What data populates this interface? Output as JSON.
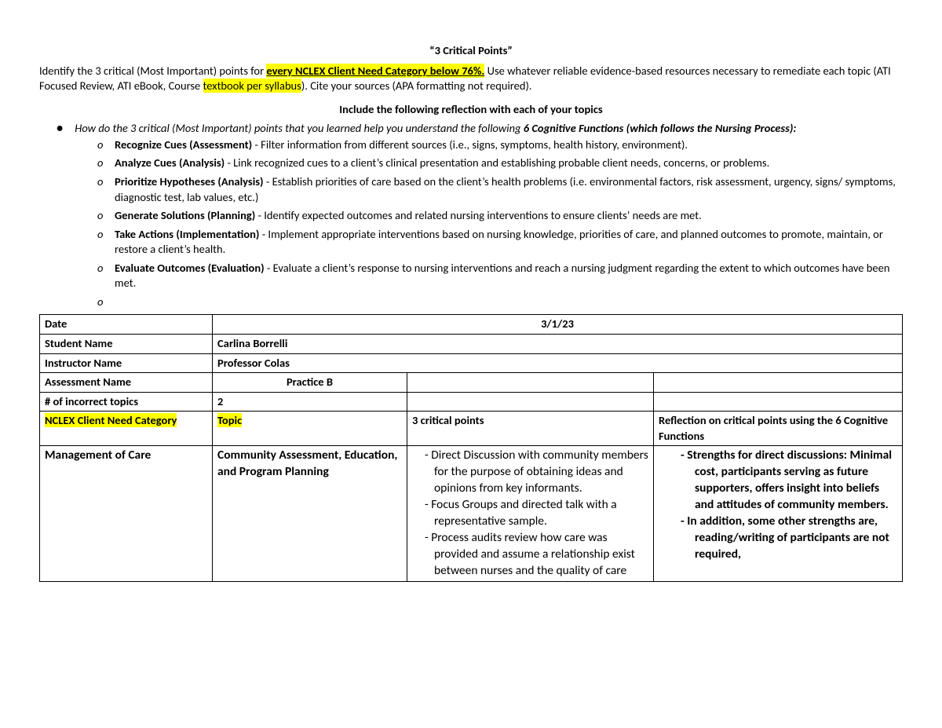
{
  "title": "“3 Critical Points”",
  "intro": {
    "pre": "Identify the 3 critical (Most Important) points for ",
    "hl1": "every NCLEX Client Need Category below 76%.",
    "mid": " Use whatever reliable evidence-based resources necessary to remediate each topic (ATI Focused Review, ATI eBook, Course ",
    "hl2": "textbook per syllabus",
    "post": "). Cite your sources (APA formatting not required)."
  },
  "subhead": "Include the following reflection with each of your topics",
  "top_bullet": {
    "pre": "How do the 3 critical (Most Important) points that you learned help you understand the following ",
    "bold": "6 Cognitive Functions (which follows the Nursing Process):"
  },
  "fns": [
    {
      "lead": "Recognize Cues (Assessment)",
      "rest": " - Filter information from different sources (i.e., signs, symptoms, health history, environment)."
    },
    {
      "lead": "Analyze Cues (Analysis)",
      "rest": " - Link recognized cues to a client’s clinical presentation and establishing probable client needs, concerns, or problems."
    },
    {
      "lead": "Prioritize Hypotheses (Analysis)",
      "rest": " - Establish priorities of care based on the client’s health problems (i.e. environmental factors, risk assessment, urgency, signs/ symptoms, diagnostic test, lab values, etc.)"
    },
    {
      "lead": "Generate Solutions (Planning)",
      "rest": " - Identify expected outcomes and related nursing interventions to ensure clients’ needs are met."
    },
    {
      "lead": "Take Actions (Implementation)",
      "rest": " - Implement appropriate interventions based on nursing knowledge, priorities of care, and planned outcomes to promote, maintain, or restore a client’s health."
    },
    {
      "lead": "Evaluate Outcomes (Evaluation)",
      "rest": " - Evaluate a client’s response to nursing interventions and reach a nursing judgment regarding the extent to which outcomes have been met."
    }
  ],
  "table": {
    "date_label": "Date",
    "date_val": "3/1/23",
    "student_label": "Student Name",
    "student_val": "Carlina Borrelli",
    "instructor_label": "Instructor Name",
    "instructor_val": "Professor Colas",
    "assess_label": "Assessment Name",
    "assess_val": "Practice B",
    "incorrect_label": "# of incorrect topics",
    "incorrect_val": "2",
    "cat_label": "NCLEX Client Need Category",
    "topic_label": "Topic",
    "pts_label": "3 critical points",
    "refl_label": "Reflection on critical points using the 6 Cognitive Functions",
    "row": {
      "cat": "Management of Care",
      "topic": "Community Assessment, Education, and Program Planning",
      "pts": [
        "- Direct Discussion with community members for the purpose of obtaining ideas and opinions from key informants.",
        "- Focus Groups and directed talk with a representative sample.",
        "- Process audits review how care was provided and assume a relationship exist between nurses and the quality of care"
      ],
      "refl": [
        "-   Strengths for direct discussions: Minimal cost, participants serving as future supporters, offers insight into beliefs and attitudes of community members.",
        "-   In addition, some other strengths are, reading/writing of participants are not required,"
      ]
    }
  }
}
